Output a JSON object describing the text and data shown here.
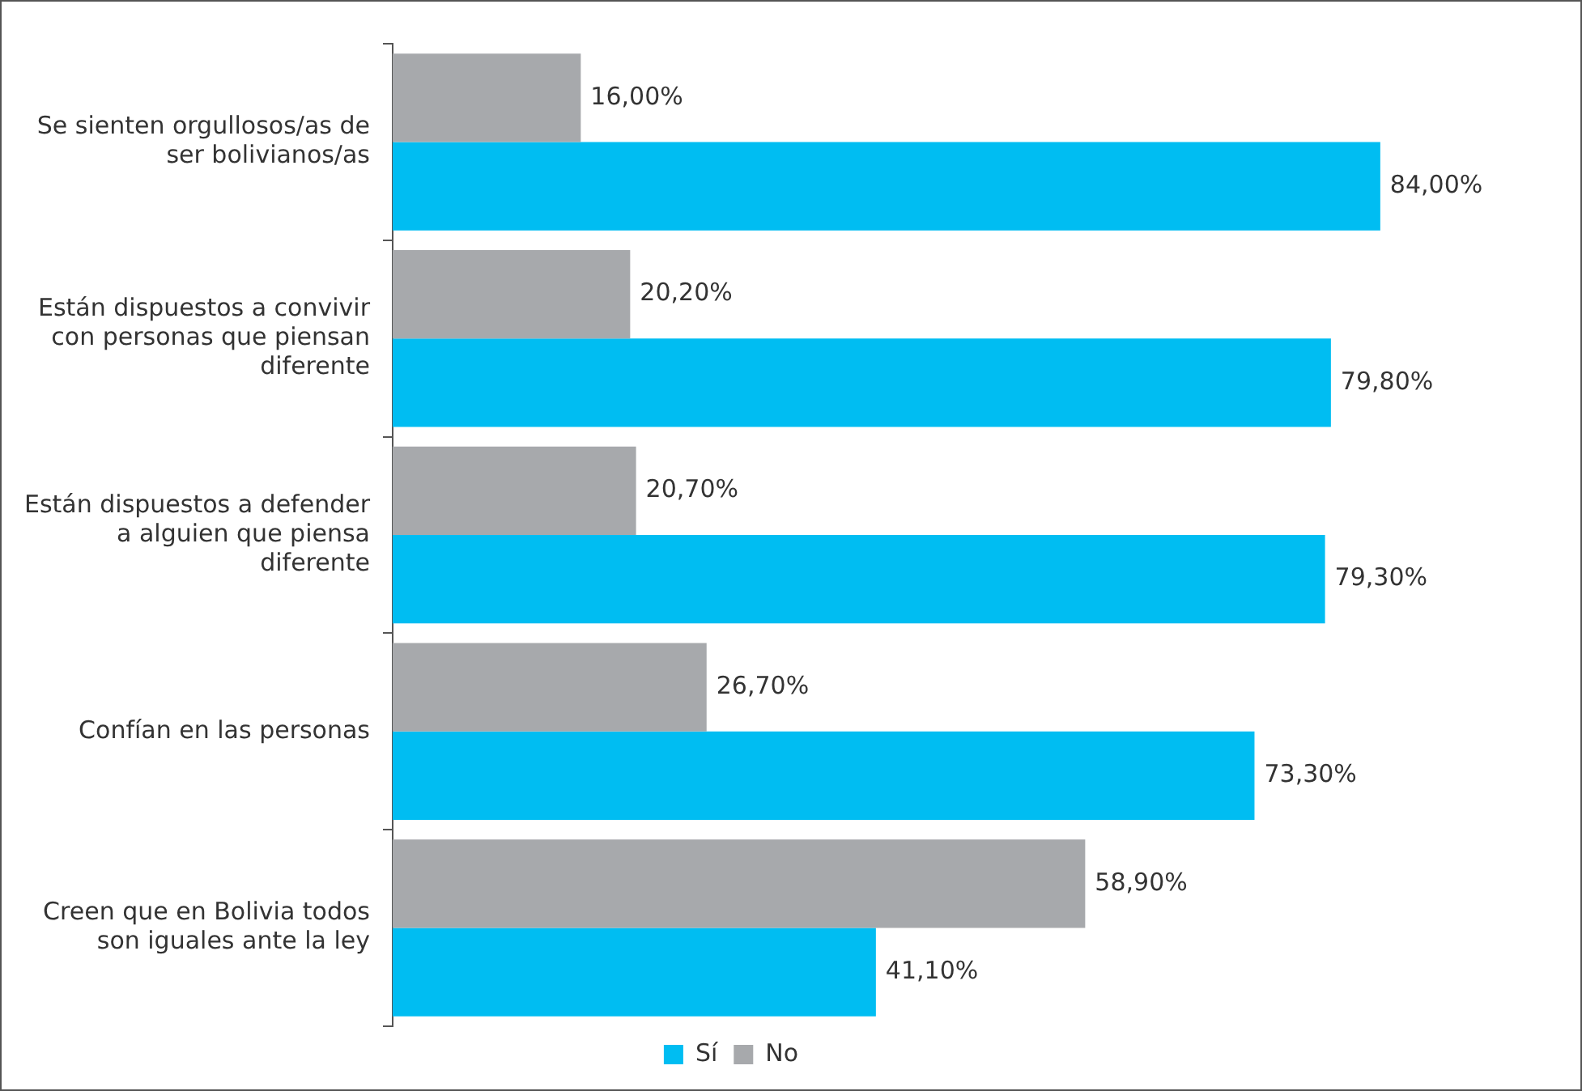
{
  "chart_data": {
    "type": "bar",
    "orientation": "horizontal",
    "categories": [
      "Se sienten orgullosos/as de ser bolivianos/as",
      "Están dispuestos a convivir con personas que piensan diferente",
      "Están dispuestos a defender a alguien que piensa diferente",
      "Confían en las personas",
      "Creen que en Bolivia todos son iguales ante la ley"
    ],
    "series": [
      {
        "name": "No",
        "color": "#a7a9ac",
        "values": [
          16,
          20.2,
          20.7,
          26.7,
          58.9
        ],
        "value_labels": [
          "16,00%",
          "20,20%",
          "20,70%",
          "26,70%",
          "58,90%"
        ]
      },
      {
        "name": "Sí",
        "color": "#00bdf2",
        "values": [
          84,
          79.8,
          79.3,
          73.3,
          41.1
        ],
        "value_labels": [
          "84,00%",
          "79,80%",
          "79,30%",
          "73,30%",
          "41,10%"
        ]
      }
    ],
    "grid": false,
    "legend": "bottom"
  }
}
